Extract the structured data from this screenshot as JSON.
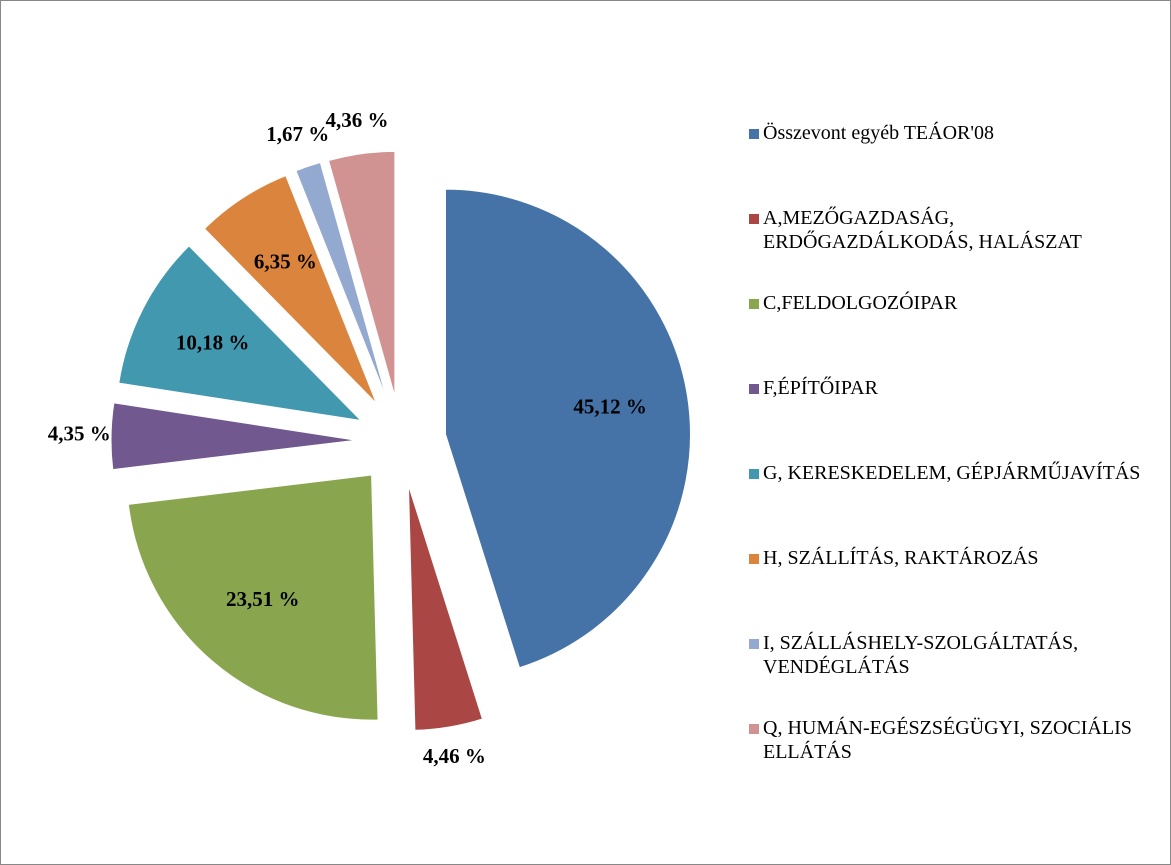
{
  "chart_data": {
    "type": "pie",
    "categories": [
      "Összevont egyéb TEÁOR'08",
      "A,MEZŐGAZDASÁG, ERDŐGAZDÁLKODÁS, HALÁSZAT",
      "C,FELDOLGOZÓIPAR",
      "F,ÉPÍTŐIPAR",
      "G, KERESKEDELEM, GÉPJÁRMŰJAVÍTÁS",
      "H, SZÁLLÍTÁS, RAKTÁROZÁS",
      "I, SZÁLLÁSHELY-SZOLGÁLTATÁS, VENDÉGLÁTÁS",
      "Q, HUMÁN-EGÉSZSÉGÜGYI, SZOCIÁLIS ELLÁTÁS"
    ],
    "values": [
      45.12,
      4.46,
      23.51,
      4.35,
      10.18,
      6.35,
      1.67,
      4.36
    ],
    "value_labels": [
      "45,12 %",
      "4,46 %",
      "23,51 %",
      "4,35 %",
      "10,18 %",
      "6,35 %",
      "1,67 %",
      "4,36 %"
    ],
    "colors": [
      "#4572a7",
      "#aa4643",
      "#89a54e",
      "#71588f",
      "#4198af",
      "#db843d",
      "#93a9cf",
      "#d19392"
    ],
    "legend": "right"
  }
}
